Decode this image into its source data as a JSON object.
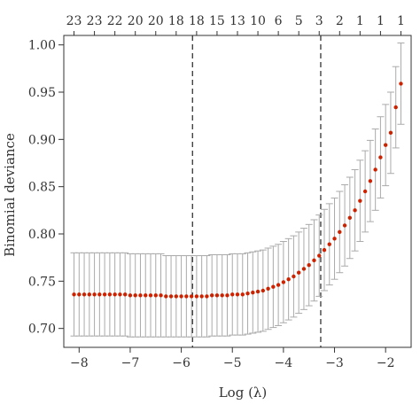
{
  "chart_data": {
    "type": "scatter",
    "title": "",
    "xlabel": "Log (λ)",
    "ylabel": "Binomial deviance",
    "xlim": [
      -8.3,
      -1.5
    ],
    "ylim": [
      0.68,
      1.01
    ],
    "xticks": [
      -8,
      -7,
      -6,
      -5,
      -4,
      -3,
      -2
    ],
    "xtick_labels": [
      "−8",
      "−7",
      "−6",
      "−5",
      "−4",
      "−3",
      "−2"
    ],
    "yticks": [
      0.7,
      0.75,
      0.8,
      0.85,
      0.9,
      0.95,
      1.0
    ],
    "ytick_labels": [
      "0.70",
      "0.75",
      "0.80",
      "0.85",
      "0.90",
      "0.95",
      "1.00"
    ],
    "top_ticks": [
      {
        "x": -8.1,
        "label": "23"
      },
      {
        "x": -7.4,
        "label": "23"
      },
      {
        "x": -6.8,
        "label": "22"
      },
      {
        "x": -6.2,
        "label": "20"
      },
      {
        "x": -5.6,
        "label": "20"
      },
      {
        "x": -5.0,
        "label": "18"
      },
      {
        "x": -4.4,
        "label": "18"
      },
      {
        "x": -3.8,
        "label": "15"
      },
      {
        "x": -3.2,
        "label": "13"
      },
      {
        "x": -2.6,
        "label": "10"
      },
      {
        "x": -2.0,
        "label": "6"
      },
      {
        "x": -1.35,
        "label": "5"
      },
      {
        "x": -0.95,
        "label": "3"
      },
      {
        "x": -0.55,
        "label": "2"
      },
      {
        "x": -0.15,
        "label": "1"
      },
      {
        "x": 0.25,
        "label": "1"
      },
      {
        "x": 0.6,
        "label": "1"
      }
    ],
    "vlines": [
      -5.78,
      -3.27
    ],
    "grid": false,
    "legend": "none",
    "colors": {
      "points": "#cc2200",
      "error_bars": "#aaaaaa",
      "axes": "#333333",
      "vlines": "#333333"
    },
    "points": {
      "x": [
        -8.1,
        -8.0,
        -7.9,
        -7.8,
        -7.7,
        -7.6,
        -7.5,
        -7.4,
        -7.3,
        -7.2,
        -7.1,
        -7.0,
        -6.9,
        -6.8,
        -6.7,
        -6.6,
        -6.5,
        -6.4,
        -6.3,
        -6.2,
        -6.1,
        -6.0,
        -5.9,
        -5.8,
        -5.7,
        -5.6,
        -5.5,
        -5.4,
        -5.3,
        -5.2,
        -5.1,
        -5.0,
        -4.9,
        -4.8,
        -4.7,
        -4.6,
        -4.5,
        -4.4,
        -4.3,
        -4.2,
        -4.1,
        -4.0,
        -3.9,
        -3.8,
        -3.7,
        -3.6,
        -3.5,
        -3.4,
        -3.3,
        -3.2,
        -3.1,
        -3.0,
        -2.9,
        -2.8,
        -2.7,
        -2.6,
        -2.5,
        -2.4,
        -2.3,
        -2.2,
        -2.1,
        -2.0,
        -1.9,
        -1.8,
        -1.7
      ],
      "y": [
        0.736,
        0.736,
        0.736,
        0.736,
        0.736,
        0.736,
        0.736,
        0.736,
        0.736,
        0.736,
        0.736,
        0.735,
        0.735,
        0.735,
        0.735,
        0.735,
        0.735,
        0.735,
        0.734,
        0.734,
        0.734,
        0.734,
        0.734,
        0.734,
        0.734,
        0.734,
        0.734,
        0.735,
        0.735,
        0.735,
        0.735,
        0.736,
        0.736,
        0.736,
        0.737,
        0.738,
        0.739,
        0.74,
        0.742,
        0.744,
        0.746,
        0.749,
        0.752,
        0.755,
        0.759,
        0.763,
        0.767,
        0.772,
        0.777,
        0.783,
        0.789,
        0.795,
        0.802,
        0.809,
        0.817,
        0.825,
        0.835,
        0.845,
        0.856,
        0.868,
        0.881,
        0.894,
        0.907,
        0.934,
        0.959
      ],
      "err": [
        0.044,
        0.044,
        0.044,
        0.044,
        0.044,
        0.044,
        0.044,
        0.044,
        0.044,
        0.044,
        0.044,
        0.044,
        0.044,
        0.044,
        0.044,
        0.044,
        0.044,
        0.044,
        0.043,
        0.043,
        0.043,
        0.043,
        0.043,
        0.043,
        0.043,
        0.043,
        0.043,
        0.043,
        0.043,
        0.043,
        0.043,
        0.043,
        0.043,
        0.043,
        0.043,
        0.043,
        0.043,
        0.043,
        0.043,
        0.043,
        0.043,
        0.043,
        0.043,
        0.043,
        0.043,
        0.043,
        0.043,
        0.043,
        0.043,
        0.043,
        0.043,
        0.043,
        0.043,
        0.043,
        0.043,
        0.043,
        0.043,
        0.043,
        0.043,
        0.043,
        0.043,
        0.043,
        0.043,
        0.043,
        0.043
      ]
    }
  }
}
